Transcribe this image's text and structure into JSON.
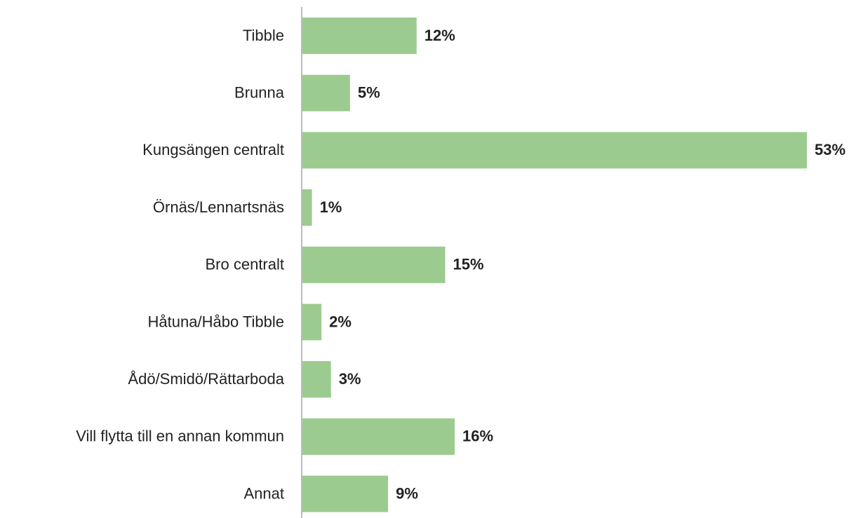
{
  "chart_data": {
    "type": "bar",
    "orientation": "horizontal",
    "categories": [
      "Tibble",
      "Brunna",
      "Kungsängen centralt",
      "Örnäs/Lennartsnäs",
      "Bro centralt",
      "Håtuna/Håbo Tibble",
      "Ådö/Smidö/Rättarboda",
      "Vill flytta till en annan kommun",
      "Annat"
    ],
    "values": [
      12,
      5,
      53,
      1,
      15,
      2,
      3,
      16,
      9
    ],
    "value_labels": [
      "12%",
      "5%",
      "53%",
      "1%",
      "15%",
      "2%",
      "3%",
      "16%",
      "9%"
    ],
    "color": "#9ccb8f"
  }
}
